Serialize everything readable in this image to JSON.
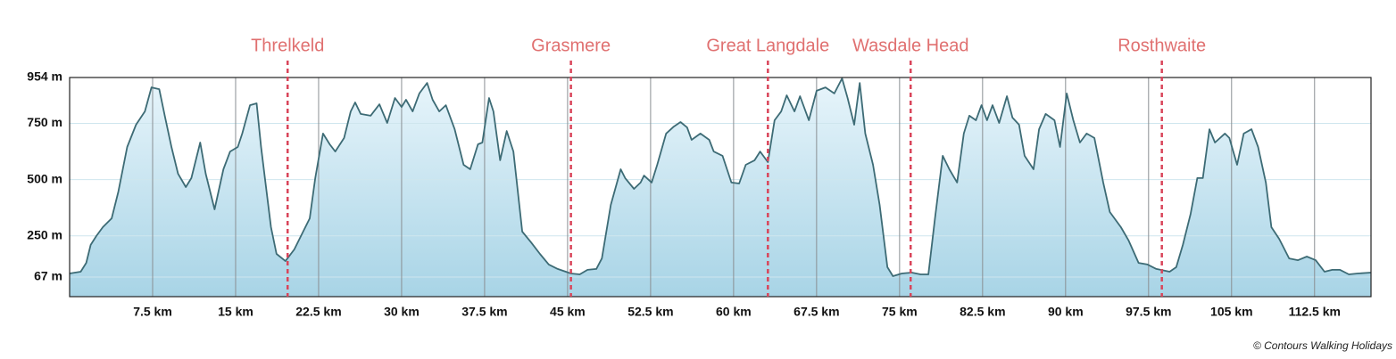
{
  "chart_data": {
    "type": "area",
    "color": "#3d6b75",
    "fill_top": "#e8f5fb",
    "fill_bottom": "#a8d4e6",
    "xlim": [
      0,
      117.6
    ],
    "ylim": [
      -20,
      954
    ],
    "xticks": [
      {
        "value": 7.5,
        "label": "7.5 km"
      },
      {
        "value": 15,
        "label": "15 km"
      },
      {
        "value": 22.5,
        "label": "22.5 km"
      },
      {
        "value": 30,
        "label": "30 km"
      },
      {
        "value": 37.5,
        "label": "37.5 km"
      },
      {
        "value": 45,
        "label": "45 km"
      },
      {
        "value": 52.5,
        "label": "52.5 km"
      },
      {
        "value": 60,
        "label": "60 km"
      },
      {
        "value": 67.5,
        "label": "67.5 km"
      },
      {
        "value": 75,
        "label": "75 km"
      },
      {
        "value": 82.5,
        "label": "82.5 km"
      },
      {
        "value": 90,
        "label": "90 km"
      },
      {
        "value": 97.5,
        "label": "97.5 km"
      },
      {
        "value": 105,
        "label": "105 km"
      },
      {
        "value": 112.5,
        "label": "112.5 km"
      }
    ],
    "yticks": [
      {
        "value": 67,
        "label": "67 m"
      },
      {
        "value": 250,
        "label": "250 m"
      },
      {
        "value": 500,
        "label": "500 m"
      },
      {
        "value": 750,
        "label": "750 m"
      },
      {
        "value": 954,
        "label": "954 m"
      }
    ],
    "markers": [
      {
        "label": "Threlkeld",
        "x": 19.7
      },
      {
        "label": "Grasmere",
        "x": 45.3
      },
      {
        "label": "Great Langdale",
        "x": 63.1
      },
      {
        "label": "Wasdale Head",
        "x": 76.0
      },
      {
        "label": "Rosthwaite",
        "x": 98.7
      }
    ],
    "marker_color": "#d9455a",
    "credit": "© Contours Walking Holidays",
    "x": [
      0,
      1.0,
      1.5,
      1.9,
      2.4,
      3.0,
      3.8,
      4.4,
      5.2,
      6.0,
      6.8,
      7.4,
      8.1,
      8.6,
      9.2,
      9.8,
      10.5,
      11.0,
      11.8,
      12.3,
      13.1,
      13.9,
      14.5,
      15.2,
      15.6,
      16.3,
      16.9,
      17.3,
      17.7,
      18.2,
      18.7,
      19.5,
      20.3,
      21.1,
      21.7,
      22.2,
      22.9,
      23.5,
      24.0,
      24.8,
      25.4,
      25.8,
      26.3,
      27.2,
      28.0,
      28.7,
      29.4,
      30.0,
      30.4,
      31.0,
      31.6,
      32.3,
      32.8,
      33.4,
      34.0,
      34.8,
      35.6,
      36.2,
      36.9,
      37.3,
      37.9,
      38.3,
      38.9,
      39.5,
      40.1,
      40.9,
      41.7,
      42.5,
      43.3,
      44.1,
      45.3,
      46.1,
      46.8,
      47.6,
      48.1,
      48.9,
      49.8,
      50.2,
      51.0,
      51.6,
      51.9,
      52.6,
      53.1,
      53.9,
      54.6,
      55.2,
      55.8,
      56.2,
      57.0,
      57.8,
      58.2,
      59.0,
      59.8,
      60.5,
      61.1,
      61.9,
      62.4,
      63.1,
      63.7,
      64.3,
      64.8,
      65.5,
      66.0,
      66.8,
      67.5,
      68.3,
      69.1,
      69.8,
      70.3,
      70.9,
      71.4,
      71.9,
      72.6,
      73.2,
      73.9,
      74.4,
      75.2,
      76.1,
      76.9,
      77.6,
      78.2,
      78.9,
      79.5,
      80.2,
      80.8,
      81.3,
      81.9,
      82.4,
      82.9,
      83.4,
      84.0,
      84.7,
      85.2,
      85.8,
      86.3,
      87.1,
      87.6,
      88.2,
      89.0,
      89.5,
      90.1,
      90.7,
      91.3,
      91.9,
      92.6,
      93.4,
      94.0,
      95.0,
      95.7,
      96.6,
      97.4,
      98.2,
      99.4,
      100.0,
      100.6,
      101.3,
      101.9,
      102.4,
      103.0,
      103.5,
      104.4,
      104.8,
      105.5,
      106.1,
      106.8,
      107.4,
      108.1,
      108.6,
      109.3,
      110.2,
      111.0,
      111.8,
      112.6,
      113.4,
      114.1,
      114.8,
      115.6,
      116.4,
      117.6
    ],
    "values": [
      83,
      91,
      130,
      210,
      249,
      289,
      328,
      447,
      645,
      744,
      803,
      910,
      902,
      784,
      645,
      526,
      467,
      507,
      665,
      526,
      368,
      546,
      625,
      645,
      705,
      831,
      839,
      645,
      487,
      289,
      170,
      138,
      190,
      269,
      328,
      507,
      705,
      657,
      625,
      685,
      803,
      843,
      792,
      784,
      835,
      752,
      863,
      823,
      855,
      803,
      883,
      930,
      855,
      803,
      831,
      724,
      566,
      546,
      657,
      665,
      863,
      803,
      586,
      716,
      625,
      269,
      221,
      170,
      123,
      103,
      83,
      79,
      99,
      103,
      150,
      388,
      546,
      507,
      459,
      487,
      518,
      487,
      566,
      705,
      736,
      756,
      732,
      677,
      705,
      677,
      625,
      606,
      487,
      483,
      566,
      586,
      625,
      578,
      764,
      803,
      875,
      803,
      871,
      764,
      895,
      910,
      883,
      950,
      863,
      744,
      930,
      705,
      566,
      388,
      111,
      71,
      83,
      87,
      79,
      79,
      328,
      606,
      546,
      487,
      705,
      784,
      764,
      831,
      764,
      831,
      752,
      871,
      776,
      744,
      606,
      546,
      724,
      792,
      764,
      645,
      883,
      764,
      665,
      705,
      685,
      487,
      356,
      289,
      229,
      130,
      123,
      103,
      91,
      111,
      210,
      348,
      507,
      507,
      724,
      665,
      705,
      685,
      566,
      705,
      724,
      645,
      487,
      289,
      237,
      150,
      142,
      158,
      142,
      91,
      99,
      99,
      79,
      83,
      87
    ]
  }
}
